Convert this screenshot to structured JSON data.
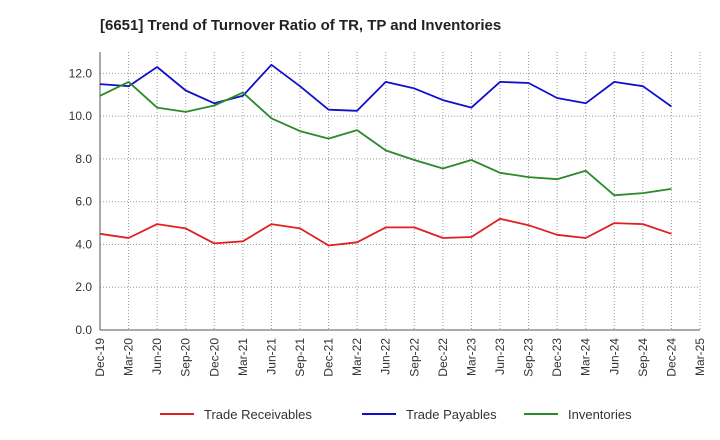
{
  "chart_data": {
    "type": "line",
    "title": "[6651]  Trend of Turnover Ratio of TR, TP and Inventories",
    "xlabel": "",
    "ylabel": "",
    "ylim": [
      0,
      13
    ],
    "yticks": [
      "0.0",
      "2.0",
      "4.0",
      "6.0",
      "8.0",
      "10.0",
      "12.0"
    ],
    "x_tick_labels": [
      "Dec-19",
      "Mar-20",
      "Jun-20",
      "Sep-20",
      "Dec-20",
      "Mar-21",
      "Jun-21",
      "Sep-21",
      "Dec-21",
      "Mar-22",
      "Jun-22",
      "Sep-22",
      "Dec-22",
      "Mar-23",
      "Jun-23",
      "Sep-23",
      "Dec-23",
      "Mar-24",
      "Jun-24",
      "Sep-24",
      "Dec-24",
      "Mar-25"
    ],
    "x": [
      "Dec-19",
      "Mar-20",
      "Jun-20",
      "Sep-20",
      "Dec-20",
      "Mar-21",
      "Jun-21",
      "Sep-21",
      "Dec-21",
      "Mar-22",
      "Jun-22",
      "Sep-22",
      "Dec-22",
      "Mar-23",
      "Jun-23",
      "Sep-23",
      "Dec-23",
      "Mar-24",
      "Jun-24",
      "Sep-24",
      "Dec-24"
    ],
    "grid": true,
    "legend_position": "bottom",
    "series": [
      {
        "name": "Trade Receivables",
        "color": "#e02020",
        "values": [
          4.5,
          4.3,
          4.95,
          4.75,
          4.05,
          4.15,
          4.95,
          4.75,
          3.95,
          4.1,
          4.8,
          4.8,
          4.3,
          4.35,
          5.2,
          4.9,
          4.45,
          4.3,
          5.0,
          4.95,
          4.5
        ]
      },
      {
        "name": "Trade Payables",
        "color": "#1010cc",
        "values": [
          11.5,
          11.4,
          12.3,
          11.2,
          10.6,
          10.95,
          12.4,
          11.4,
          10.3,
          10.25,
          11.6,
          11.3,
          10.75,
          10.4,
          11.6,
          11.55,
          10.85,
          10.6,
          11.6,
          11.4,
          10.45
        ]
      },
      {
        "name": "Inventories",
        "color": "#2a8a2a",
        "values": [
          10.95,
          11.6,
          10.4,
          10.2,
          10.5,
          11.1,
          9.9,
          9.3,
          8.95,
          9.35,
          8.4,
          7.95,
          7.55,
          7.95,
          7.35,
          7.15,
          7.05,
          7.45,
          6.3,
          6.4,
          6.6
        ]
      }
    ]
  }
}
